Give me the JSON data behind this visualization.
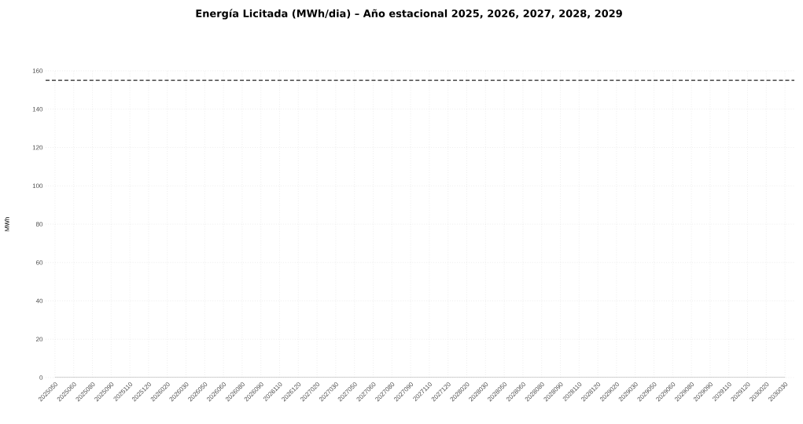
{
  "chart_data": {
    "type": "line",
    "title": "Energía Licitada (MWh/dia) – Año estacional 2025, 2026, 2027, 2028, 2029",
    "ylabel": "MWh",
    "categories": [
      "2025050",
      "2025060",
      "2025080",
      "2025090",
      "2025110",
      "2025120",
      "2026020",
      "2026030",
      "2026050",
      "2026060",
      "2026080",
      "2026090",
      "2026110",
      "2026120",
      "2027020",
      "2027030",
      "2027050",
      "2027060",
      "2027080",
      "2027090",
      "2027110",
      "2027120",
      "2028020",
      "2028030",
      "2028050",
      "2028060",
      "2028080",
      "2028090",
      "2028110",
      "2028120",
      "2029020",
      "2029030",
      "2029050",
      "2029060",
      "2029080",
      "2029090",
      "2029110",
      "2029120",
      "2030020",
      "2030030"
    ],
    "series": [
      {
        "color": "#9a9a9a",
        "values": [
          0,
          0,
          0,
          0,
          0,
          0,
          0,
          0,
          0,
          0,
          0,
          0,
          0,
          0,
          0,
          0,
          0,
          0,
          0,
          0,
          0,
          0,
          0,
          0,
          0,
          0,
          0,
          0,
          0,
          0,
          0,
          0,
          0,
          0,
          0,
          0,
          0,
          0,
          0,
          0
        ]
      }
    ],
    "marker": "none",
    "ylim": [
      0,
      160
    ],
    "yticks": [
      0,
      20,
      40,
      60,
      80,
      100,
      120,
      140,
      160
    ],
    "grid": true,
    "ref_lines": [
      {
        "axis": "y",
        "value": 155,
        "color": "#222222",
        "line_style": "dashed"
      }
    ]
  }
}
